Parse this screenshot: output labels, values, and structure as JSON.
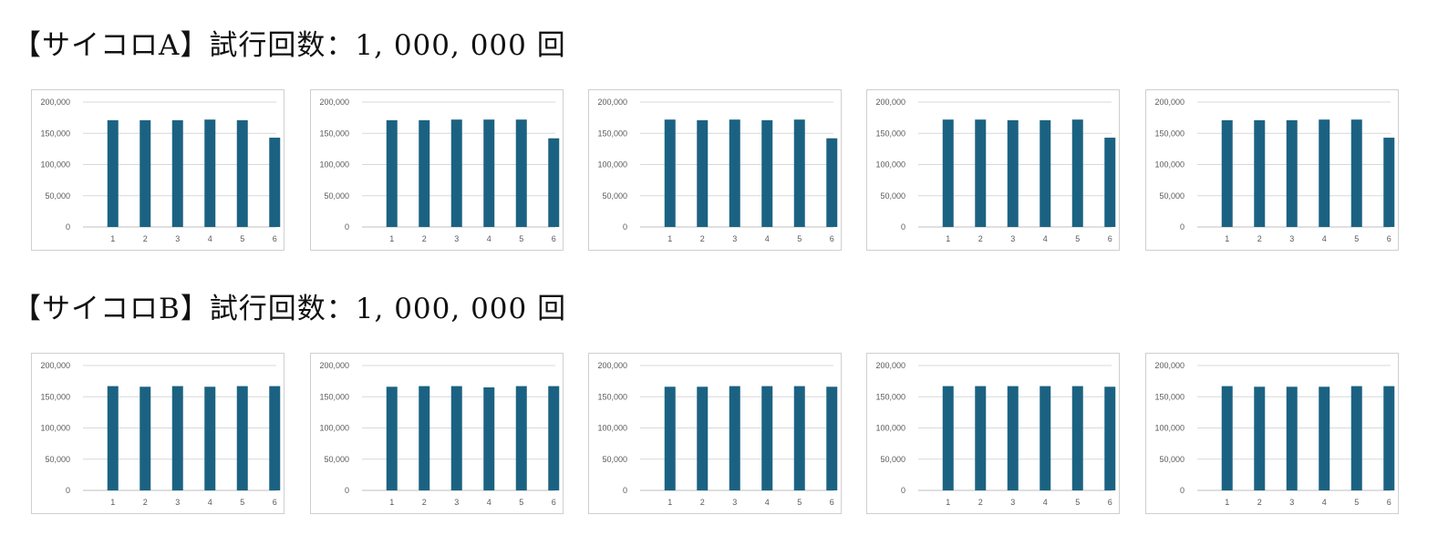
{
  "sections": [
    {
      "title": "【サイコロA】試行回数：1, 000, 000 回",
      "chart_data": [
        {
          "type": "bar",
          "categories": [
            "1",
            "2",
            "3",
            "4",
            "5",
            "6"
          ],
          "values": [
            171000,
            171000,
            171000,
            172000,
            171000,
            143000
          ],
          "ylim": [
            0,
            200000
          ],
          "yticks": [
            "0",
            "50,000",
            "100,000",
            "150,000",
            "200,000"
          ],
          "grid": true,
          "bar_color": "#1b6282"
        },
        {
          "type": "bar",
          "categories": [
            "1",
            "2",
            "3",
            "4",
            "5",
            "6"
          ],
          "values": [
            171000,
            171000,
            172000,
            172000,
            172000,
            142000
          ],
          "ylim": [
            0,
            200000
          ],
          "yticks": [
            "0",
            "50,000",
            "100,000",
            "150,000",
            "200,000"
          ],
          "grid": true,
          "bar_color": "#1b6282"
        },
        {
          "type": "bar",
          "categories": [
            "1",
            "2",
            "3",
            "4",
            "5",
            "6"
          ],
          "values": [
            172000,
            171000,
            172000,
            171000,
            172000,
            142000
          ],
          "ylim": [
            0,
            200000
          ],
          "yticks": [
            "0",
            "50,000",
            "100,000",
            "150,000",
            "200,000"
          ],
          "grid": true,
          "bar_color": "#1b6282"
        },
        {
          "type": "bar",
          "categories": [
            "1",
            "2",
            "3",
            "4",
            "5",
            "6"
          ],
          "values": [
            172000,
            172000,
            171000,
            171000,
            172000,
            143000
          ],
          "ylim": [
            0,
            200000
          ],
          "yticks": [
            "0",
            "50,000",
            "100,000",
            "150,000",
            "200,000"
          ],
          "grid": true,
          "bar_color": "#1b6282"
        },
        {
          "type": "bar",
          "categories": [
            "1",
            "2",
            "3",
            "4",
            "5",
            "6"
          ],
          "values": [
            171000,
            171000,
            171000,
            172000,
            172000,
            143000
          ],
          "ylim": [
            0,
            200000
          ],
          "yticks": [
            "0",
            "50,000",
            "100,000",
            "150,000",
            "200,000"
          ],
          "grid": true,
          "bar_color": "#1b6282"
        }
      ]
    },
    {
      "title": "【サイコロB】試行回数：1, 000, 000 回",
      "chart_data": [
        {
          "type": "bar",
          "categories": [
            "1",
            "2",
            "3",
            "4",
            "5",
            "6"
          ],
          "values": [
            167000,
            166000,
            167000,
            166000,
            167000,
            167000
          ],
          "ylim": [
            0,
            200000
          ],
          "yticks": [
            "0",
            "50,000",
            "100,000",
            "150,000",
            "200,000"
          ],
          "grid": true,
          "bar_color": "#1b6282"
        },
        {
          "type": "bar",
          "categories": [
            "1",
            "2",
            "3",
            "4",
            "5",
            "6"
          ],
          "values": [
            166000,
            167000,
            167000,
            165000,
            167000,
            167000
          ],
          "ylim": [
            0,
            200000
          ],
          "yticks": [
            "0",
            "50,000",
            "100,000",
            "150,000",
            "200,000"
          ],
          "grid": true,
          "bar_color": "#1b6282"
        },
        {
          "type": "bar",
          "categories": [
            "1",
            "2",
            "3",
            "4",
            "5",
            "6"
          ],
          "values": [
            166000,
            166000,
            167000,
            167000,
            167000,
            166000
          ],
          "ylim": [
            0,
            200000
          ],
          "yticks": [
            "0",
            "50,000",
            "100,000",
            "150,000",
            "200,000"
          ],
          "grid": true,
          "bar_color": "#1b6282"
        },
        {
          "type": "bar",
          "categories": [
            "1",
            "2",
            "3",
            "4",
            "5",
            "6"
          ],
          "values": [
            167000,
            167000,
            167000,
            167000,
            167000,
            166000
          ],
          "ylim": [
            0,
            200000
          ],
          "yticks": [
            "0",
            "50,000",
            "100,000",
            "150,000",
            "200,000"
          ],
          "grid": true,
          "bar_color": "#1b6282"
        },
        {
          "type": "bar",
          "categories": [
            "1",
            "2",
            "3",
            "4",
            "5",
            "6"
          ],
          "values": [
            167000,
            166000,
            166000,
            166000,
            167000,
            167000
          ],
          "ylim": [
            0,
            200000
          ],
          "yticks": [
            "0",
            "50,000",
            "100,000",
            "150,000",
            "200,000"
          ],
          "grid": true,
          "bar_color": "#1b6282"
        }
      ]
    }
  ]
}
